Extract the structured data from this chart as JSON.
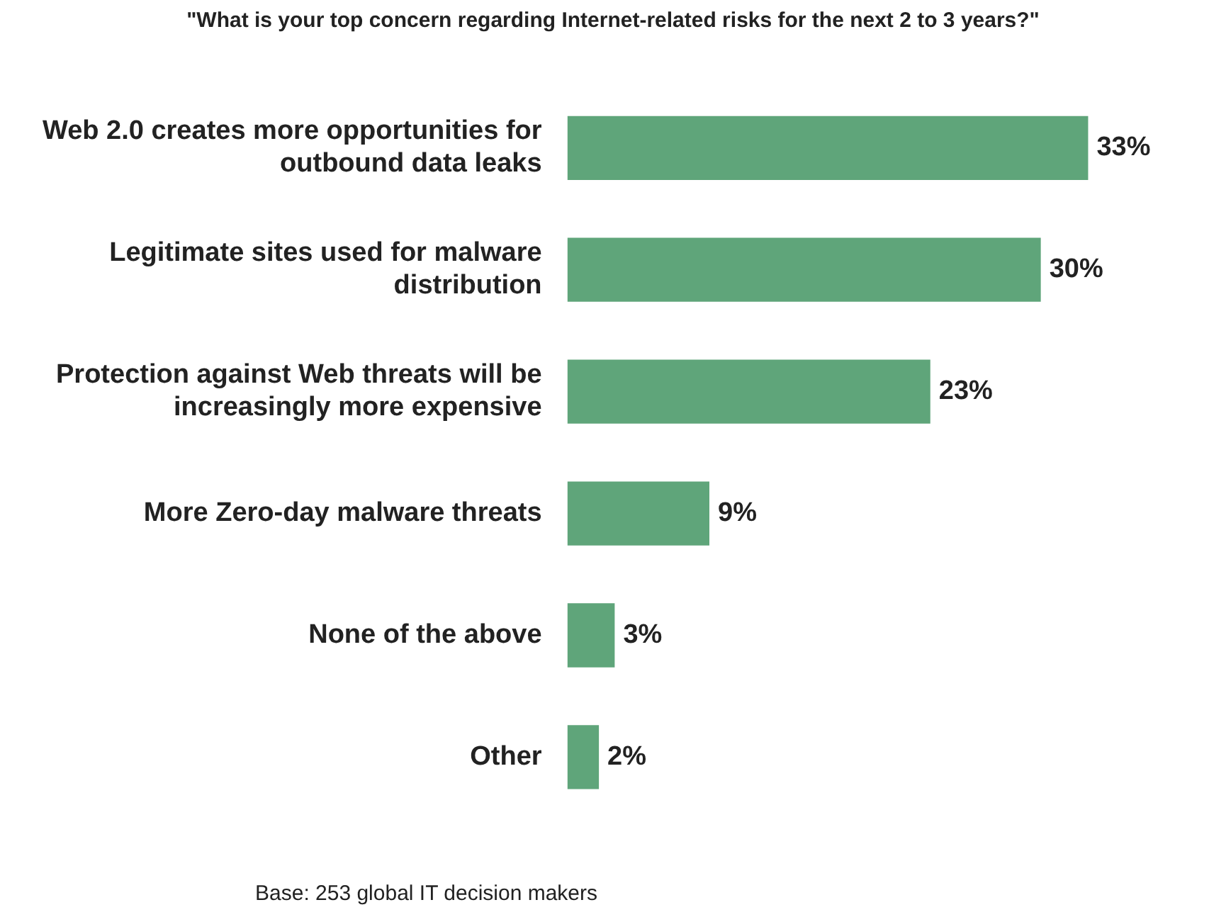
{
  "chart_data": {
    "type": "bar",
    "orientation": "horizontal",
    "title": "\"What is your top concern regarding Internet-related risks for the next 2 to 3 years?\"",
    "categories": [
      "Web 2.0 creates more opportunities for outbound data leaks",
      "Legitimate sites used for malware distribution",
      "Protection against Web threats will be increasingly more expensive",
      "More Zero-day malware threats",
      "None of the above",
      "Other"
    ],
    "values": [
      33,
      30,
      23,
      9,
      3,
      2
    ],
    "value_labels": [
      "33%",
      "30%",
      "23%",
      "9%",
      "3%",
      "2%"
    ],
    "color": "#5fa57a",
    "legend": false,
    "annotations": [
      "Base: 253 global IT decision makers"
    ]
  }
}
